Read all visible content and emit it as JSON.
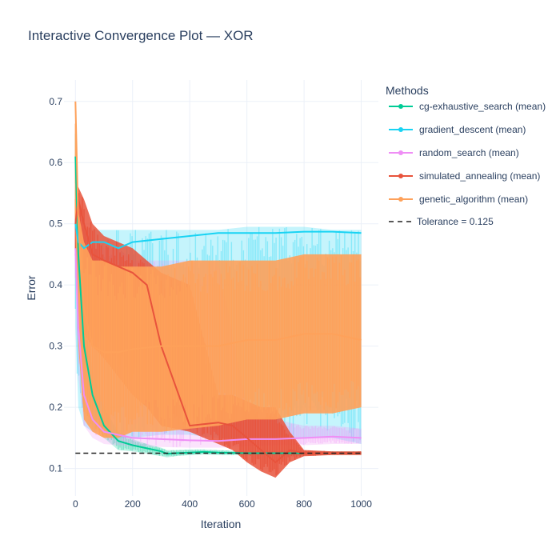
{
  "chart_data": {
    "type": "line",
    "title": "Interactive Convergence Plot — XOR",
    "xlabel": "Iteration",
    "ylabel": "Error",
    "xlim": [
      -40,
      1060
    ],
    "ylim": [
      0.055,
      0.735
    ],
    "x_ticks": [
      0,
      200,
      400,
      600,
      800,
      1000
    ],
    "y_ticks": [
      0.1,
      0.2,
      0.3,
      0.4,
      0.5,
      0.6,
      0.7
    ],
    "grid": true,
    "legend_title": "Methods",
    "legend_position": "right",
    "tolerance": {
      "name": "Tolerance = 0.125",
      "value": 0.125,
      "style": "dashed",
      "color": "#222222"
    },
    "series": [
      {
        "name": "cg-exhaustive_search (mean)",
        "color": "#00cc96",
        "x": [
          0,
          10,
          30,
          60,
          100,
          150,
          200,
          250,
          300,
          320,
          350,
          400,
          450,
          500,
          600,
          700,
          800,
          900,
          1000
        ],
        "mean": [
          0.61,
          0.45,
          0.3,
          0.22,
          0.17,
          0.145,
          0.138,
          0.133,
          0.128,
          0.124,
          0.125,
          0.126,
          0.127,
          0.126,
          0.125,
          0.125,
          0.125,
          0.125,
          0.125
        ],
        "lower": [
          0.55,
          0.38,
          0.25,
          0.18,
          0.15,
          0.13,
          0.128,
          0.124,
          0.12,
          0.118,
          0.12,
          0.122,
          0.123,
          0.122,
          0.122,
          0.122,
          0.122,
          0.122,
          0.122
        ],
        "upper": [
          0.66,
          0.5,
          0.34,
          0.26,
          0.2,
          0.16,
          0.148,
          0.14,
          0.134,
          0.13,
          0.13,
          0.131,
          0.131,
          0.13,
          0.128,
          0.128,
          0.128,
          0.128,
          0.128
        ]
      },
      {
        "name": "gradient_descent (mean)",
        "color": "#19d3f3",
        "x": [
          0,
          10,
          30,
          60,
          100,
          150,
          200,
          300,
          400,
          500,
          600,
          700,
          800,
          900,
          1000
        ],
        "mean": [
          0.5,
          0.47,
          0.46,
          0.47,
          0.47,
          0.46,
          0.47,
          0.475,
          0.48,
          0.485,
          0.485,
          0.485,
          0.487,
          0.487,
          0.485
        ],
        "lower": [
          0.33,
          0.2,
          0.17,
          0.16,
          0.16,
          0.15,
          0.15,
          0.155,
          0.155,
          0.15,
          0.15,
          0.15,
          0.15,
          0.15,
          0.14
        ],
        "upper": [
          0.59,
          0.5,
          0.49,
          0.49,
          0.49,
          0.49,
          0.49,
          0.49,
          0.49,
          0.49,
          0.495,
          0.495,
          0.495,
          0.49,
          0.49
        ]
      },
      {
        "name": "random_search (mean)",
        "color": "#ef8ef5",
        "x": [
          0,
          10,
          30,
          60,
          100,
          150,
          200,
          300,
          400,
          500,
          600,
          700,
          800,
          900,
          1000
        ],
        "mean": [
          0.46,
          0.33,
          0.22,
          0.18,
          0.16,
          0.155,
          0.15,
          0.148,
          0.146,
          0.145,
          0.148,
          0.148,
          0.15,
          0.152,
          0.15
        ],
        "lower": [
          0.4,
          0.25,
          0.17,
          0.15,
          0.14,
          0.138,
          0.136,
          0.135,
          0.134,
          0.134,
          0.136,
          0.138,
          0.138,
          0.14,
          0.14
        ],
        "upper": [
          0.52,
          0.45,
          0.44,
          0.46,
          0.46,
          0.46,
          0.44,
          0.44,
          0.44,
          0.44,
          0.2,
          0.18,
          0.17,
          0.17,
          0.165
        ]
      },
      {
        "name": "simulated_annealing (mean)",
        "color": "#e8533c",
        "x": [
          0,
          10,
          30,
          60,
          100,
          150,
          200,
          250,
          300,
          400,
          500,
          550,
          600,
          650,
          700,
          750,
          800,
          900,
          1000
        ],
        "mean": [
          0.5,
          0.54,
          0.5,
          0.45,
          0.44,
          0.43,
          0.42,
          0.4,
          0.3,
          0.17,
          0.175,
          0.17,
          0.15,
          0.13,
          0.11,
          0.13,
          0.125,
          0.125,
          0.125
        ],
        "lower": [
          0.44,
          0.44,
          0.32,
          0.3,
          0.28,
          0.25,
          0.22,
          0.2,
          0.17,
          0.16,
          0.14,
          0.13,
          0.11,
          0.095,
          0.085,
          0.11,
          0.12,
          0.122,
          0.122
        ],
        "upper": [
          0.56,
          0.56,
          0.54,
          0.5,
          0.48,
          0.47,
          0.46,
          0.44,
          0.42,
          0.4,
          0.22,
          0.22,
          0.21,
          0.2,
          0.2,
          0.16,
          0.13,
          0.128,
          0.128
        ]
      },
      {
        "name": "genetic_algorithm (mean)",
        "color": "#fea15a",
        "x": [
          0,
          10,
          30,
          60,
          100,
          150,
          200,
          300,
          400,
          500,
          600,
          700,
          800,
          900,
          1000
        ],
        "mean": [
          0.7,
          0.5,
          0.36,
          0.3,
          0.29,
          0.29,
          0.295,
          0.3,
          0.3,
          0.3,
          0.31,
          0.31,
          0.32,
          0.32,
          0.31
        ],
        "lower": [
          0.5,
          0.3,
          0.18,
          0.16,
          0.15,
          0.15,
          0.16,
          0.16,
          0.165,
          0.17,
          0.18,
          0.18,
          0.19,
          0.19,
          0.2
        ],
        "upper": [
          0.7,
          0.52,
          0.47,
          0.44,
          0.44,
          0.43,
          0.43,
          0.43,
          0.44,
          0.44,
          0.44,
          0.44,
          0.45,
          0.45,
          0.45
        ]
      }
    ]
  }
}
